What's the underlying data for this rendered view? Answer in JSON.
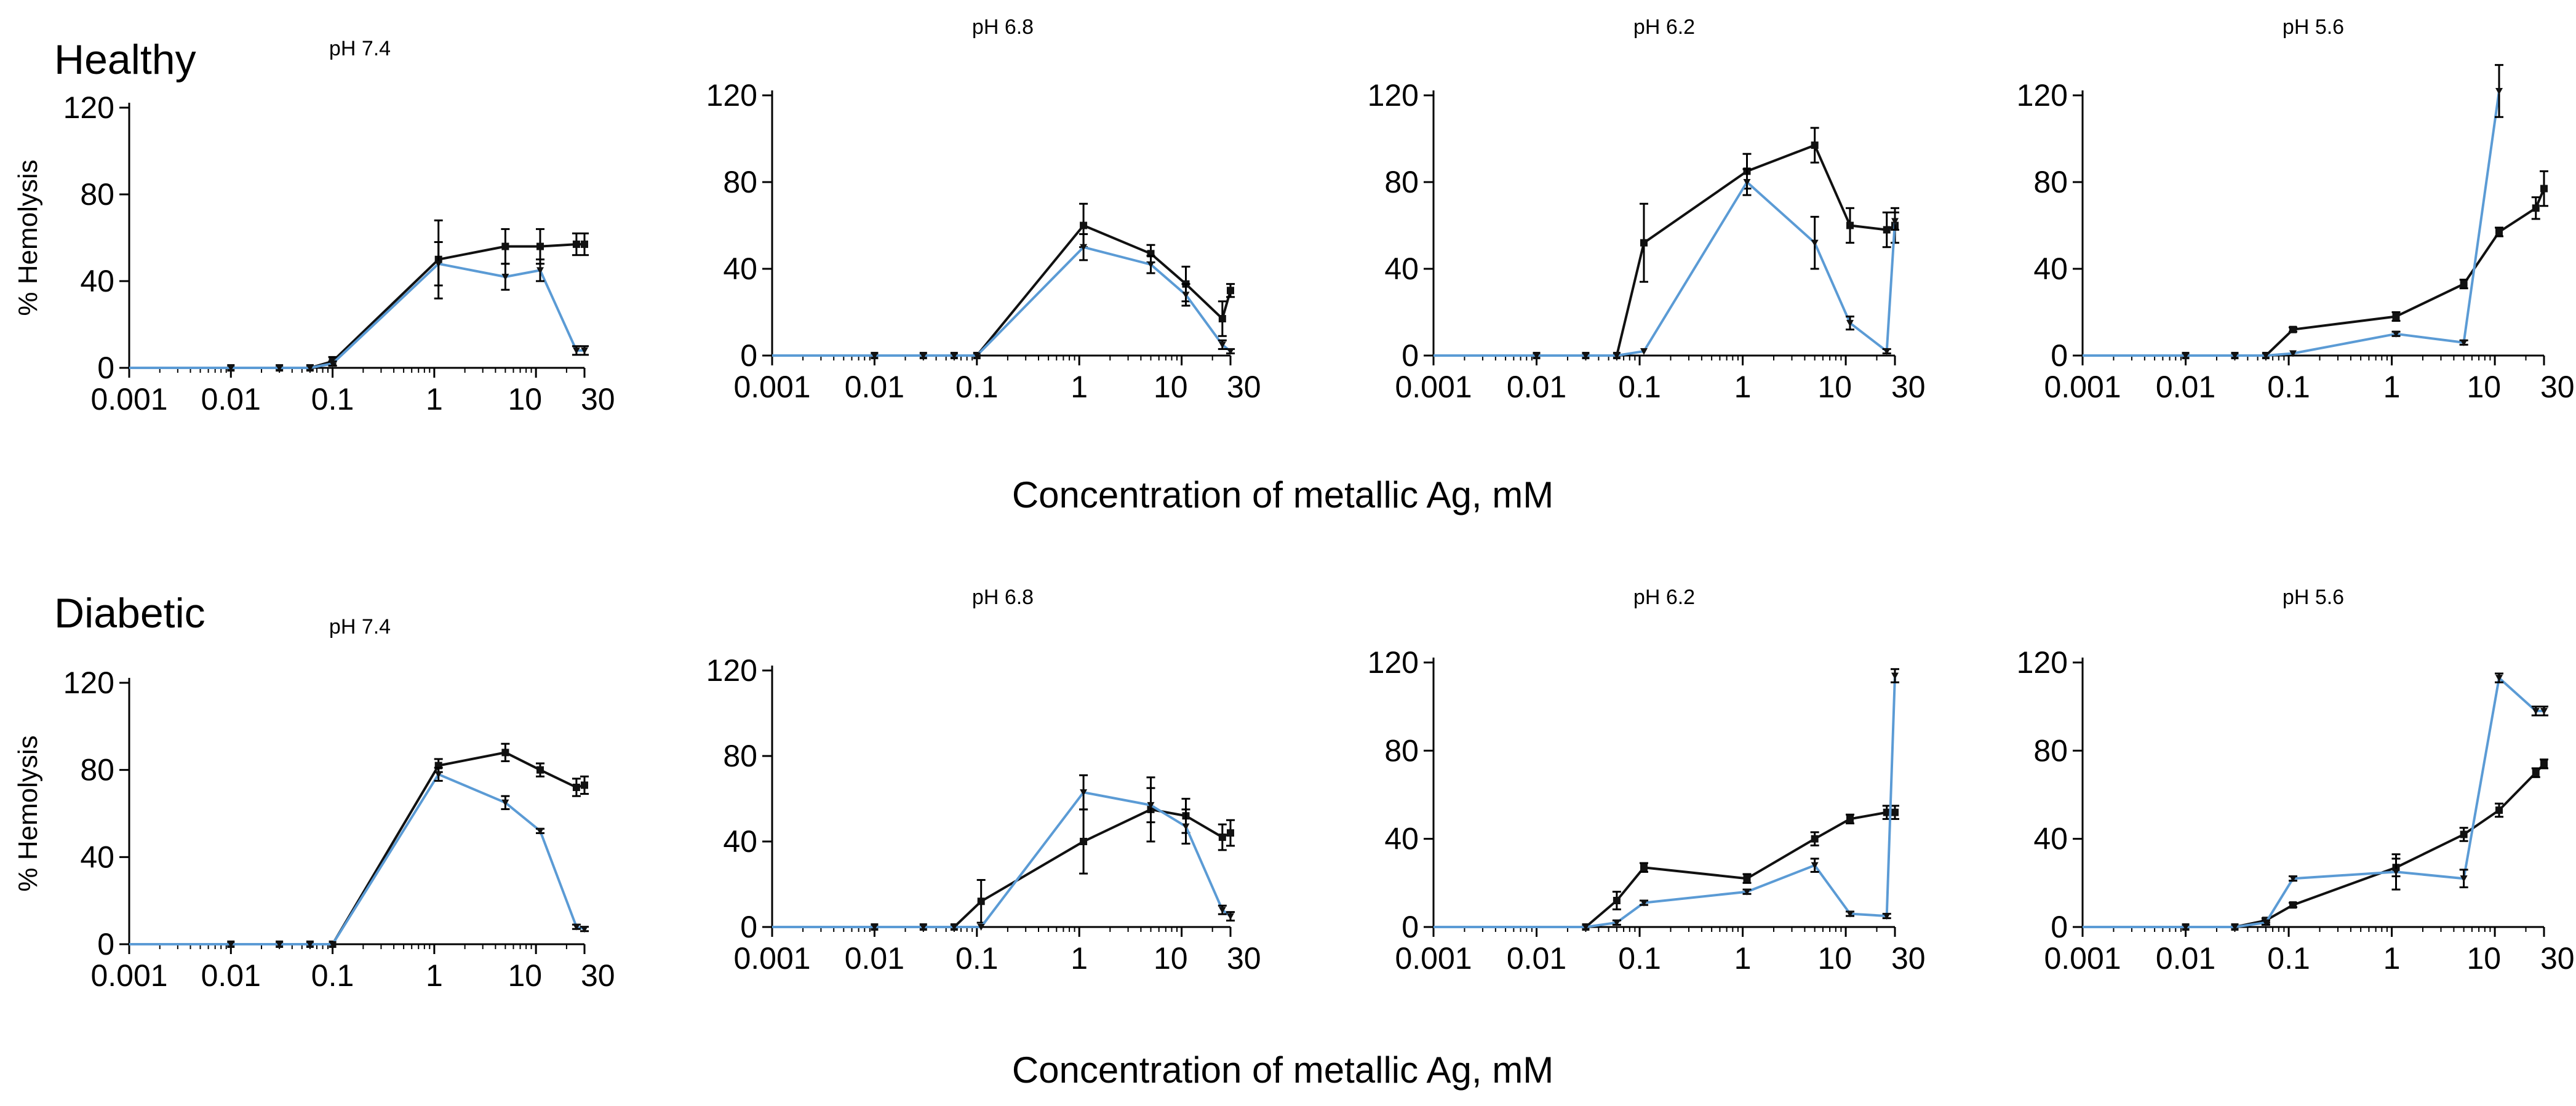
{
  "figure": {
    "x_axis_label": "Concentration of metallic Ag, mM",
    "groups": [
      "Healthy",
      "Diabetic"
    ],
    "colors": {
      "black_series": "#111111",
      "blue_series": "#5b9bd5",
      "axis": "#000000"
    }
  },
  "chart_data": [
    {
      "type": "line",
      "group": "Healthy",
      "title": "pH 7.4",
      "xscale": "log",
      "xlabel": "",
      "ylabel": "% Hemolysis",
      "xlim": [
        0.001,
        30
      ],
      "ylim": [
        0,
        120
      ],
      "x_ticks": [
        "0.001",
        "0.01",
        "0.1",
        "1",
        "10",
        "30"
      ],
      "y_ticks": [
        "0",
        "40",
        "80",
        "120"
      ],
      "series": [
        {
          "name": "black",
          "x": [
            0.01,
            0.03,
            0.06,
            0.1,
            1.1,
            5,
            11,
            25,
            30
          ],
          "y": [
            0,
            0,
            0,
            3,
            50,
            56,
            56,
            57,
            57
          ],
          "err": [
            0,
            0,
            0,
            2,
            18,
            8,
            8,
            5,
            5
          ]
        },
        {
          "name": "blue",
          "x": [
            0.01,
            0.03,
            0.06,
            0.1,
            1.1,
            5,
            11,
            25,
            30
          ],
          "y": [
            0,
            0,
            0,
            2,
            48,
            42,
            45,
            8,
            8
          ],
          "err": [
            0,
            0,
            0,
            1,
            10,
            6,
            5,
            2,
            2
          ]
        }
      ]
    },
    {
      "type": "line",
      "group": "Healthy",
      "title": "pH 6.8",
      "xscale": "log",
      "xlabel": "",
      "ylabel": "",
      "xlim": [
        0.001,
        30
      ],
      "ylim": [
        0,
        120
      ],
      "x_ticks": [
        "0.001",
        "0.01",
        "0.1",
        "1",
        "10",
        "30"
      ],
      "y_ticks": [
        "0",
        "40",
        "80",
        "120"
      ],
      "series": [
        {
          "name": "black",
          "x": [
            0.01,
            0.03,
            0.06,
            0.1,
            1.1,
            5,
            11,
            25,
            30
          ],
          "y": [
            0,
            0,
            0,
            0,
            60,
            47,
            33,
            17,
            30
          ],
          "err": [
            0,
            0,
            0,
            0,
            10,
            4,
            8,
            8,
            3
          ]
        },
        {
          "name": "blue",
          "x": [
            0.01,
            0.03,
            0.06,
            0.1,
            1.1,
            5,
            11,
            25,
            30
          ],
          "y": [
            0,
            0,
            0,
            0,
            50,
            42,
            28,
            5,
            2
          ],
          "err": [
            0,
            0,
            0,
            0,
            6,
            4,
            5,
            2,
            1
          ]
        }
      ]
    },
    {
      "type": "line",
      "group": "Healthy",
      "title": "pH 6.2",
      "xscale": "log",
      "xlabel": "",
      "ylabel": "",
      "xlim": [
        0.001,
        30
      ],
      "ylim": [
        0,
        120
      ],
      "x_ticks": [
        "0.001",
        "0.01",
        "0.1",
        "1",
        "10",
        "30"
      ],
      "y_ticks": [
        "0",
        "40",
        "80",
        "120"
      ],
      "series": [
        {
          "name": "black",
          "x": [
            0.01,
            0.03,
            0.06,
            0.11,
            1.1,
            5,
            11,
            25,
            30
          ],
          "y": [
            0,
            0,
            0,
            52,
            85,
            97,
            60,
            58,
            60
          ],
          "err": [
            0,
            0,
            0,
            18,
            8,
            8,
            8,
            8,
            8
          ]
        },
        {
          "name": "blue",
          "x": [
            0.01,
            0.03,
            0.06,
            0.11,
            1.1,
            5,
            11,
            25,
            30
          ],
          "y": [
            0,
            0,
            0,
            2,
            80,
            52,
            15,
            2,
            62
          ],
          "err": [
            0,
            0,
            0,
            0,
            6,
            12,
            3,
            1,
            4
          ]
        }
      ]
    },
    {
      "type": "line",
      "group": "Healthy",
      "title": "pH 5.6",
      "xscale": "log",
      "xlabel": "",
      "ylabel": "",
      "xlim": [
        0.001,
        30
      ],
      "ylim": [
        0,
        120
      ],
      "x_ticks": [
        "0.001",
        "0.01",
        "0.1",
        "1",
        "10",
        "30"
      ],
      "y_ticks": [
        "0",
        "40",
        "80",
        "120"
      ],
      "series": [
        {
          "name": "black",
          "x": [
            0.01,
            0.03,
            0.06,
            0.11,
            1.1,
            5,
            11,
            25,
            30
          ],
          "y": [
            0,
            0,
            0,
            12,
            18,
            33,
            57,
            68,
            77
          ],
          "err": [
            0,
            0,
            0,
            1,
            2,
            2,
            2,
            5,
            8
          ]
        },
        {
          "name": "blue",
          "x": [
            0.01,
            0.03,
            0.06,
            0.11,
            1.1,
            5,
            11
          ],
          "y": [
            0,
            0,
            0,
            1,
            10,
            6,
            122
          ],
          "err": [
            0,
            0,
            0,
            0,
            1,
            1,
            12
          ]
        }
      ]
    },
    {
      "type": "line",
      "group": "Diabetic",
      "title": "pH 7.4",
      "xscale": "log",
      "xlabel": "",
      "ylabel": "% Hemolysis",
      "xlim": [
        0.001,
        30
      ],
      "ylim": [
        0,
        120
      ],
      "x_ticks": [
        "0.001",
        "0.01",
        "0.1",
        "1",
        "10",
        "30"
      ],
      "y_ticks": [
        "0",
        "40",
        "80",
        "120"
      ],
      "series": [
        {
          "name": "black",
          "x": [
            0.01,
            0.03,
            0.06,
            0.1,
            1.1,
            5,
            11,
            25,
            30
          ],
          "y": [
            0,
            0,
            0,
            0,
            82,
            88,
            80,
            72,
            73
          ],
          "err": [
            0,
            0,
            0,
            0,
            3,
            4,
            3,
            4,
            4
          ]
        },
        {
          "name": "blue",
          "x": [
            0.01,
            0.03,
            0.06,
            0.1,
            1.1,
            5,
            11,
            25,
            30
          ],
          "y": [
            0,
            0,
            0,
            0,
            78,
            65,
            52,
            8,
            7
          ],
          "err": [
            0,
            0,
            0,
            0,
            3,
            3,
            1,
            1,
            1
          ]
        }
      ]
    },
    {
      "type": "line",
      "group": "Diabetic",
      "title": "pH 6.8",
      "xscale": "log",
      "xlabel": "",
      "ylabel": "",
      "xlim": [
        0.001,
        30
      ],
      "ylim": [
        0,
        120
      ],
      "x_ticks": [
        "0.001",
        "0.01",
        "0.1",
        "1",
        "10",
        "30"
      ],
      "y_ticks": [
        "0",
        "40",
        "80",
        "120"
      ],
      "series": [
        {
          "name": "black",
          "x": [
            0.01,
            0.03,
            0.06,
            0.11,
            1.1,
            5,
            11,
            25,
            30
          ],
          "y": [
            0,
            0,
            0,
            12,
            40,
            55,
            52,
            42,
            44
          ],
          "err": [
            0,
            0,
            0,
            10,
            15,
            15,
            8,
            6,
            6
          ]
        },
        {
          "name": "blue",
          "x": [
            0.01,
            0.03,
            0.06,
            0.11,
            1.1,
            5,
            11,
            25,
            30
          ],
          "y": [
            0,
            0,
            0,
            0,
            63,
            57,
            47,
            8,
            5
          ],
          "err": [
            0,
            0,
            0,
            0,
            8,
            8,
            8,
            2,
            2
          ]
        }
      ]
    },
    {
      "type": "line",
      "group": "Diabetic",
      "title": "pH 6.2",
      "xscale": "log",
      "xlabel": "",
      "ylabel": "",
      "xlim": [
        0.001,
        30
      ],
      "ylim": [
        0,
        120
      ],
      "x_ticks": [
        "0.001",
        "0.01",
        "0.1",
        "1",
        "10",
        "30"
      ],
      "y_ticks": [
        "0",
        "40",
        "80",
        "120"
      ],
      "series": [
        {
          "name": "black",
          "x": [
            0.03,
            0.06,
            0.11,
            1.1,
            5,
            11,
            25,
            30
          ],
          "y": [
            0,
            12,
            27,
            22,
            40,
            49,
            52,
            52
          ],
          "err": [
            0,
            4,
            2,
            2,
            3,
            2,
            3,
            3
          ]
        },
        {
          "name": "blue",
          "x": [
            0.03,
            0.06,
            0.11,
            1.1,
            5,
            11,
            25,
            30
          ],
          "y": [
            0,
            2,
            11,
            16,
            28,
            6,
            5,
            114
          ],
          "err": [
            0,
            1,
            1,
            1,
            3,
            1,
            1,
            3
          ]
        }
      ]
    },
    {
      "type": "line",
      "group": "Diabetic",
      "title": "pH 5.6",
      "xscale": "log",
      "xlabel": "",
      "ylabel": "",
      "xlim": [
        0.001,
        30
      ],
      "ylim": [
        0,
        120
      ],
      "x_ticks": [
        "0.001",
        "0.01",
        "0.1",
        "1",
        "10",
        "30"
      ],
      "y_ticks": [
        "0",
        "40",
        "80",
        "120"
      ],
      "series": [
        {
          "name": "black",
          "x": [
            0.01,
            0.03,
            0.06,
            0.11,
            1.1,
            5,
            11,
            25,
            30
          ],
          "y": [
            0,
            0,
            3,
            10,
            27,
            42,
            53,
            70,
            74
          ],
          "err": [
            0,
            0,
            1,
            1,
            4,
            3,
            3,
            2,
            2
          ]
        },
        {
          "name": "blue",
          "x": [
            0.01,
            0.03,
            0.06,
            0.11,
            1.1,
            5,
            11,
            25,
            30
          ],
          "y": [
            0,
            0,
            2,
            22,
            25,
            22,
            113,
            98,
            98
          ],
          "err": [
            0,
            0,
            1,
            1,
            8,
            4,
            2,
            2,
            2
          ]
        }
      ]
    }
  ]
}
